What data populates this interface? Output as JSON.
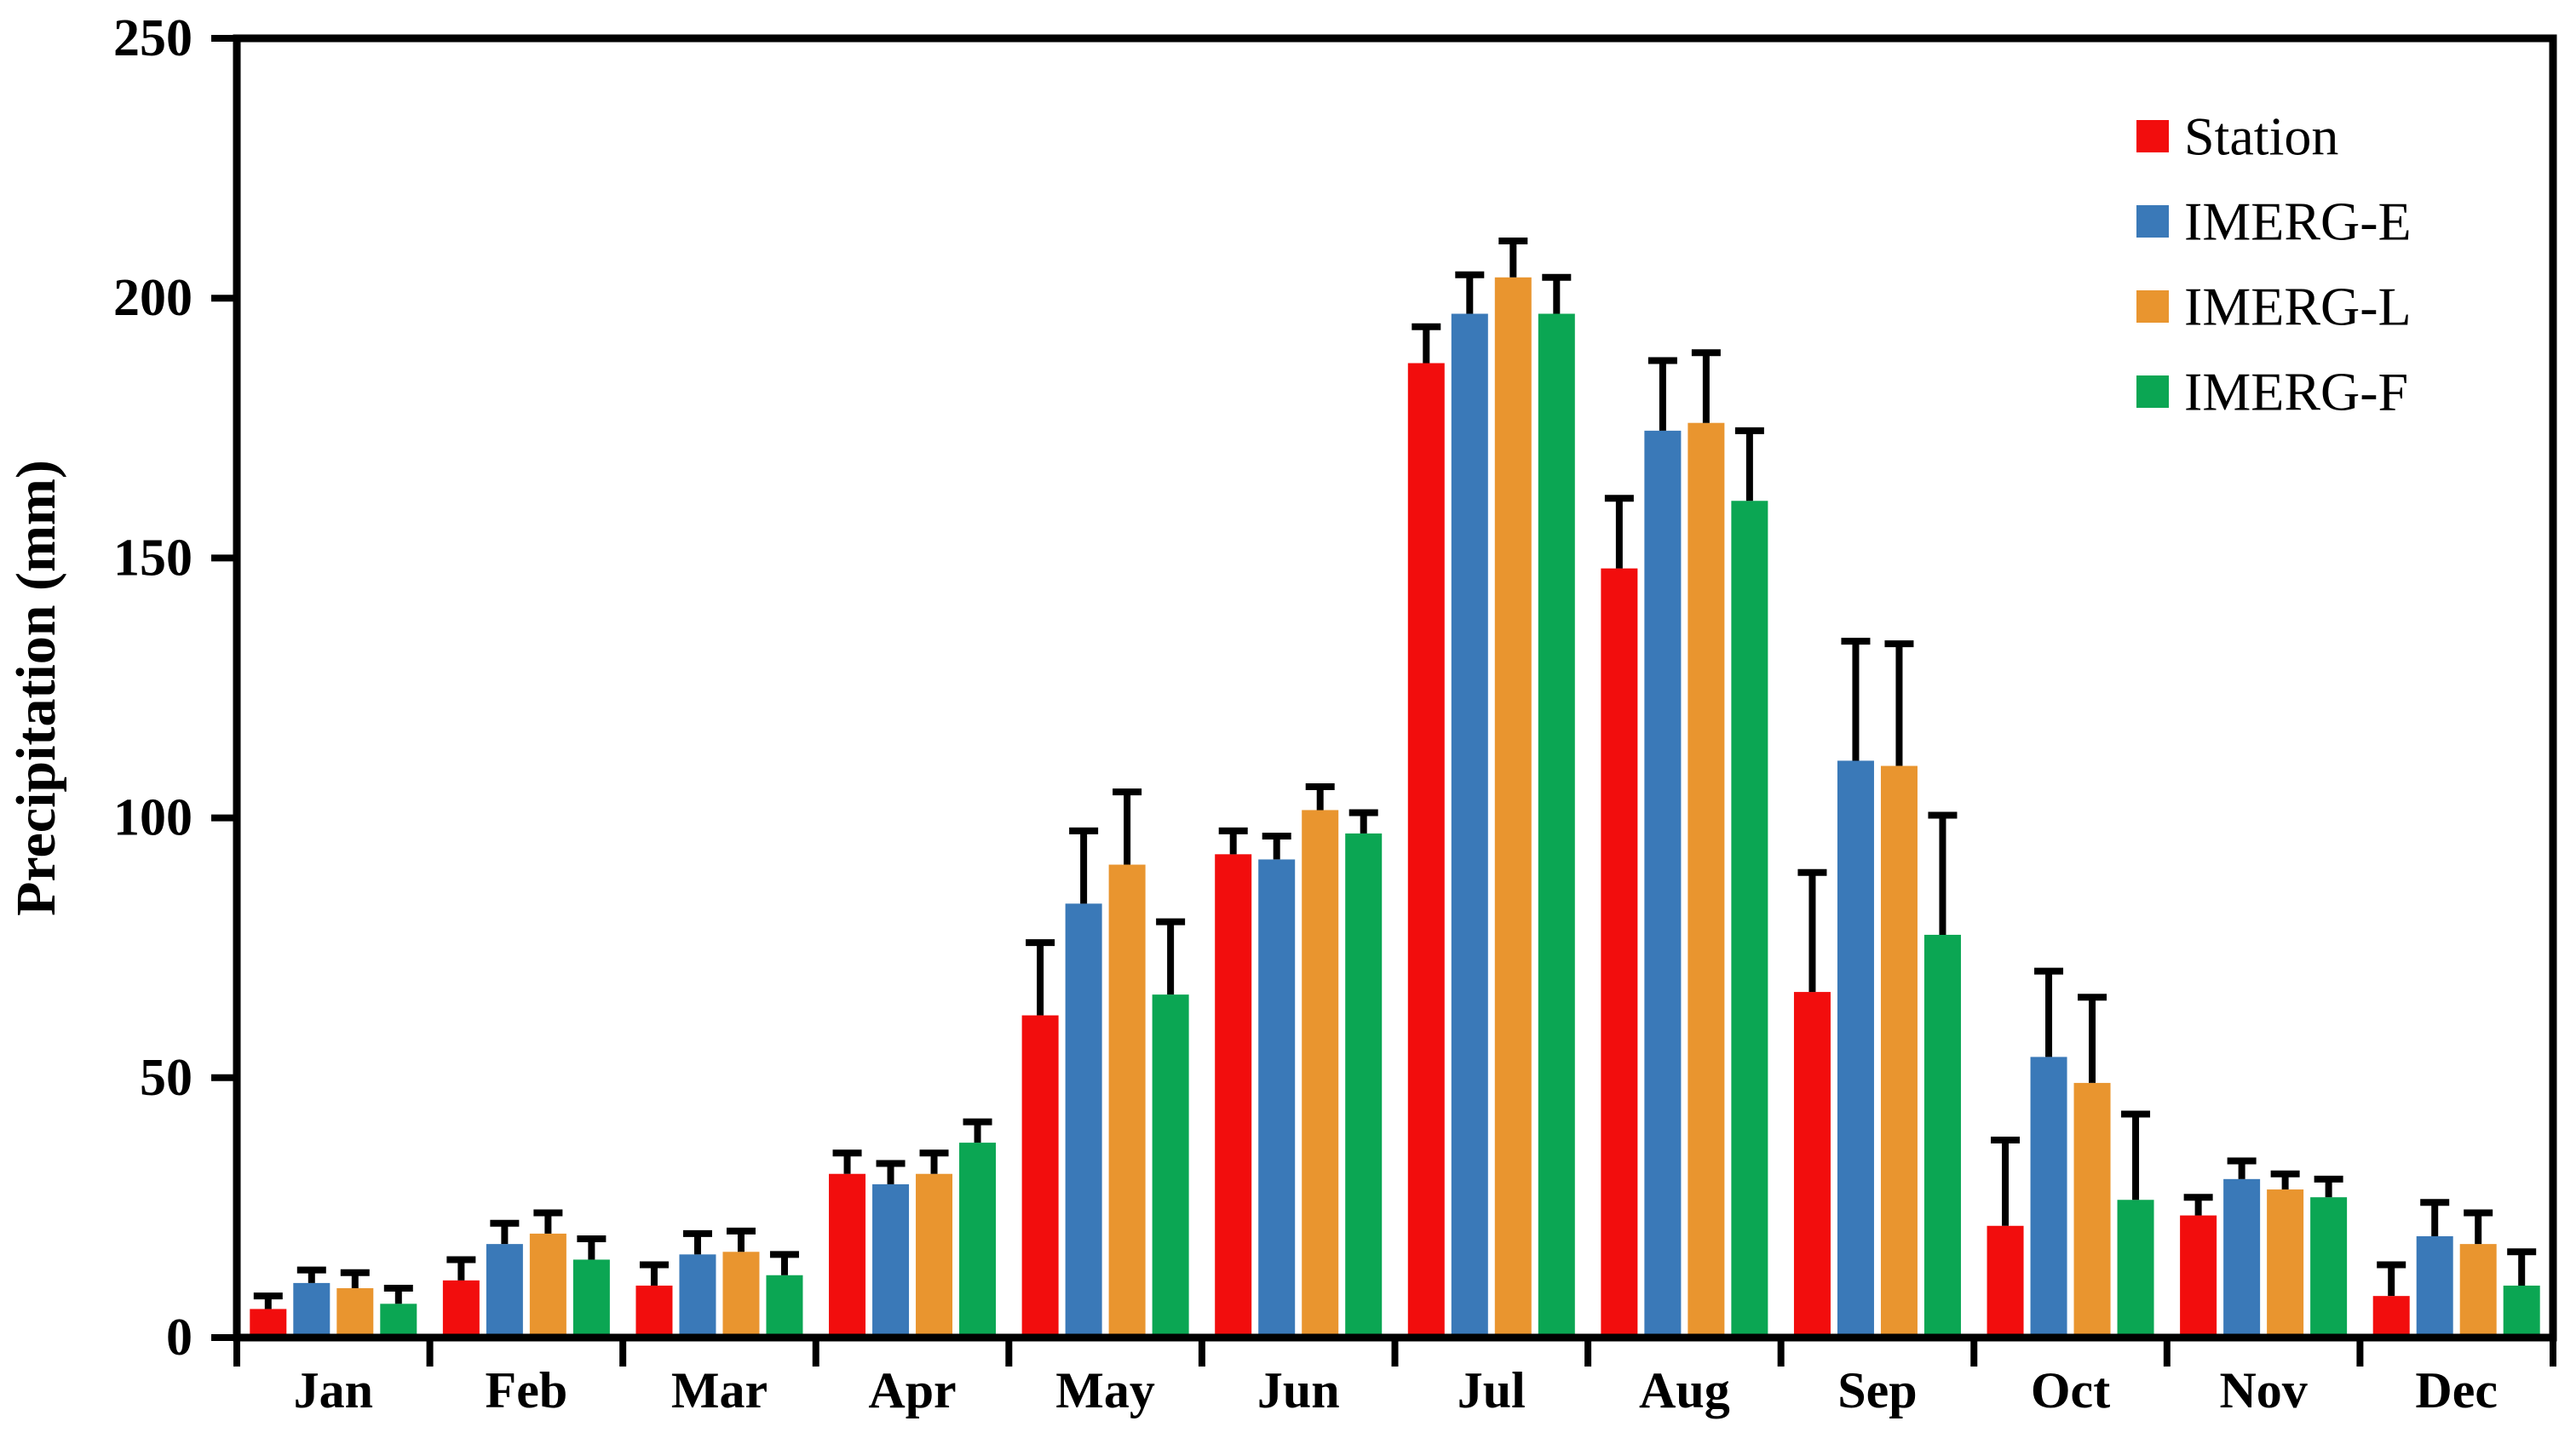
{
  "chart_data": {
    "type": "bar",
    "title": "",
    "xlabel": "",
    "ylabel": "Precipitation (mm)",
    "ylim": [
      0,
      250
    ],
    "yticks": [
      0,
      50,
      100,
      150,
      200,
      250
    ],
    "grid": false,
    "error_bars": "upper",
    "legend_position": "top-right",
    "categories": [
      "Jan",
      "Feb",
      "Mar",
      "Apr",
      "May",
      "Jun",
      "Jul",
      "Aug",
      "Sep",
      "Oct",
      "Nov",
      "Dec"
    ],
    "series": [
      {
        "name": "Station",
        "color": "#F20D0D",
        "values": [
          5.5,
          11,
          10,
          31.5,
          62,
          93,
          187.5,
          148,
          66.5,
          21.5,
          23.5,
          8
        ],
        "errors": [
          2.5,
          4,
          4,
          4,
          14,
          4.5,
          7,
          13.5,
          23,
          16.5,
          3.5,
          6
        ]
      },
      {
        "name": "IMERG-E",
        "color": "#3A79B8",
        "values": [
          10.5,
          18,
          16,
          29.5,
          83.5,
          92,
          197,
          174.5,
          111,
          54,
          30.5,
          19.5
        ],
        "errors": [
          2.5,
          4,
          4,
          4,
          14,
          4.5,
          7.5,
          13.5,
          23,
          16.5,
          3.5,
          6.5
        ]
      },
      {
        "name": "IMERG-L",
        "color": "#E9952F",
        "values": [
          9.5,
          20,
          16.5,
          31.5,
          91,
          101.5,
          204,
          176,
          110,
          49,
          28.5,
          18
        ],
        "errors": [
          3,
          4,
          4,
          4,
          14,
          4.5,
          7,
          13.5,
          23.5,
          16.5,
          3,
          6
        ]
      },
      {
        "name": "IMERG-F",
        "color": "#0BA653",
        "values": [
          6.5,
          15,
          12,
          37.5,
          66,
          97,
          197,
          161,
          77.5,
          26.5,
          27,
          10
        ],
        "errors": [
          3,
          4,
          4,
          4,
          14,
          4,
          7,
          13.5,
          23,
          16.5,
          3.5,
          6.5
        ]
      }
    ],
    "axis_color": "#000000"
  },
  "layout_note_values_unit": "mm"
}
